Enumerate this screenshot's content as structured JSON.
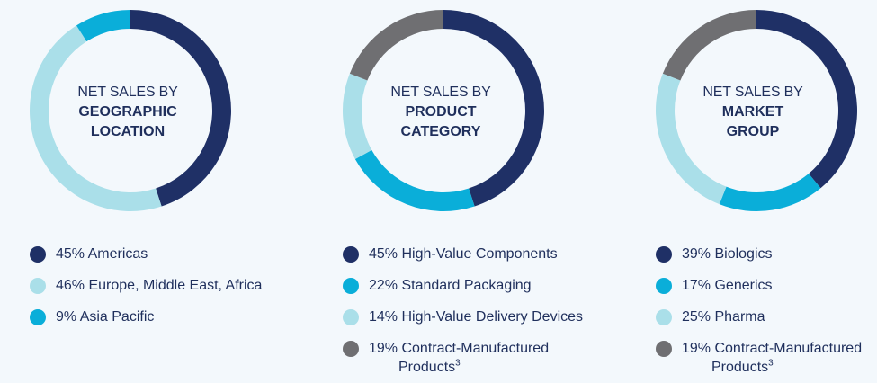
{
  "colors": {
    "navy": "#1f3066",
    "bright_blue": "#0aaed9",
    "light_blue": "#aadfe9",
    "gray": "#6f6f72"
  },
  "charts": [
    {
      "title_l1": "NET SALES BY",
      "title_l2": "GEOGRAPHIC",
      "title_l3": "LOCATION",
      "legend": [
        {
          "text": "45% Americas",
          "cont": "",
          "sup": ""
        },
        {
          "text": "46% Europe, Middle East, Africa",
          "cont": "",
          "sup": ""
        },
        {
          "text": "9% Asia Pacific",
          "cont": "",
          "sup": ""
        }
      ]
    },
    {
      "title_l1": "NET SALES BY",
      "title_l2": "PRODUCT",
      "title_l3": "CATEGORY",
      "legend": [
        {
          "text": "45% High-Value Components",
          "cont": "",
          "sup": ""
        },
        {
          "text": "22% Standard Packaging",
          "cont": "",
          "sup": ""
        },
        {
          "text": "14% High-Value Delivery Devices",
          "cont": "",
          "sup": ""
        },
        {
          "text": "19% Contract-Manufactured",
          "cont": "Products",
          "sup": "3"
        }
      ]
    },
    {
      "title_l1": "NET SALES BY",
      "title_l2": "MARKET",
      "title_l3": "GROUP",
      "legend": [
        {
          "text": "39% Biologics",
          "cont": "",
          "sup": ""
        },
        {
          "text": "17% Generics",
          "cont": "",
          "sup": ""
        },
        {
          "text": "25% Pharma",
          "cont": "",
          "sup": ""
        },
        {
          "text": "19% Contract-Manufactured",
          "cont": "Products",
          "sup": "3"
        }
      ]
    }
  ],
  "chart_data": [
    {
      "type": "pie",
      "title": "NET SALES BY GEOGRAPHIC LOCATION",
      "categories": [
        "Americas",
        "Europe, Middle East, Africa",
        "Asia Pacific"
      ],
      "values": [
        45,
        46,
        9
      ],
      "colors": [
        "#1f3066",
        "#aadfe9",
        "#0aaed9"
      ]
    },
    {
      "type": "pie",
      "title": "NET SALES BY PRODUCT CATEGORY",
      "categories": [
        "High-Value Components",
        "Standard Packaging",
        "High-Value Delivery Devices",
        "Contract-Manufactured Products"
      ],
      "values": [
        45,
        22,
        14,
        19
      ],
      "colors": [
        "#1f3066",
        "#0aaed9",
        "#aadfe9",
        "#6f6f72"
      ]
    },
    {
      "type": "pie",
      "title": "NET SALES BY MARKET GROUP",
      "categories": [
        "Biologics",
        "Generics",
        "Pharma",
        "Contract-Manufactured Products"
      ],
      "values": [
        39,
        17,
        25,
        19
      ],
      "colors": [
        "#1f3066",
        "#0aaed9",
        "#aadfe9",
        "#6f6f72"
      ]
    }
  ]
}
